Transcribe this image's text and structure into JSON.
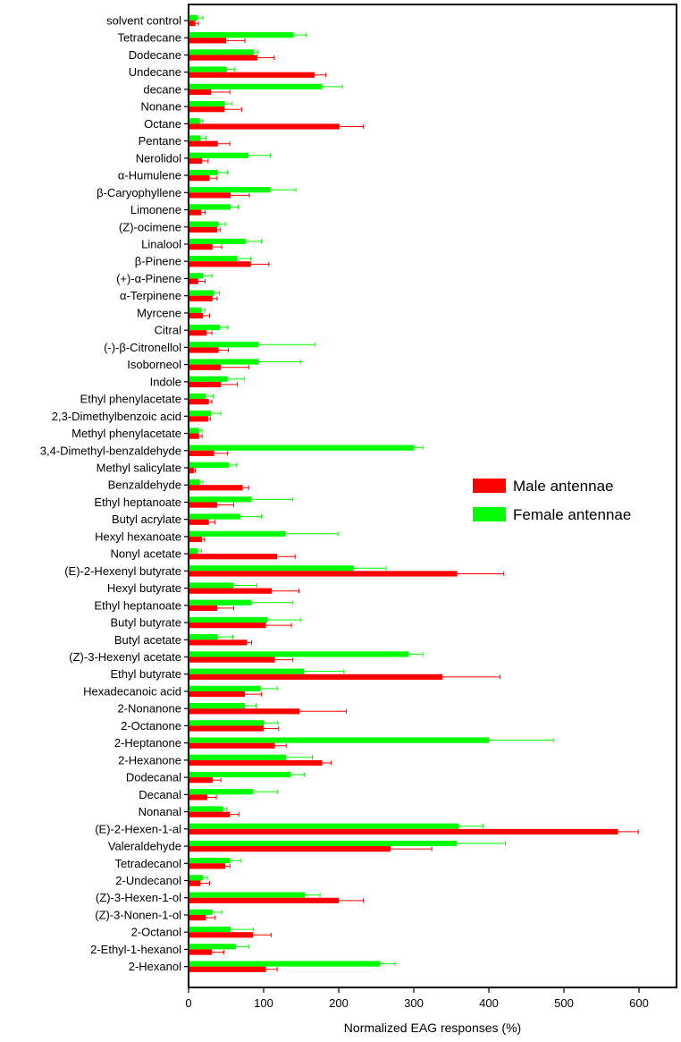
{
  "chart_data": {
    "type": "bar",
    "orientation": "horizontal",
    "xlabel": "Normalized EAG responses (%)",
    "xlim": [
      0,
      650
    ],
    "xticks": [
      0,
      100,
      200,
      300,
      400,
      500,
      600
    ],
    "grid": false,
    "legend_position": "right",
    "categories": [
      "solvent control",
      "Tetradecane",
      "Dodecane",
      "Undecane",
      "decane",
      "Nonane",
      "Octane",
      "Pentane",
      "Nerolidol",
      "α-Humulene",
      "β-Caryophyllene",
      "Limonene",
      "(Z)-ocimene",
      "Linalool",
      "β-Pinene",
      "(+)-α-Pinene",
      "α-Terpinene",
      "Myrcene",
      "Citral",
      "(-)-β-Citronellol",
      "Isoborneol",
      "Indole",
      "Ethyl phenylacetate",
      "2,3-Dimethylbenzoic acid",
      "Methyl phenylacetate",
      "3,4-Dimethyl-benzaldehyde",
      "Methyl salicylate",
      "Benzaldehyde",
      "Ethyl heptanoate",
      "Butyl acrylate",
      "Hexyl hexanoate",
      "Nonyl acetate",
      "(E)-2-Hexenyl butyrate",
      "Hexyl butyrate",
      "Ethyl heptanoate",
      "Butyl butyrate",
      "Butyl acetate",
      "(Z)-3-Hexenyl acetate",
      "Ethyl butyrate",
      "Hexadecanoic acid",
      "2-Nonanone",
      "2-Octanone",
      "2-Heptanone",
      "2-Hexanone",
      "Dodecanal",
      "Decanal",
      "Nonanal",
      "(E)-2-Hexen-1-al",
      "Valeraldehyde",
      "Tetradecanol",
      "2-Undecanol",
      "(Z)-3-Hexen-1-ol",
      "(Z)-3-Nonen-1-ol",
      "2-Octanol",
      "2-Ethyl-1-hexanol",
      "2-Hexanol"
    ],
    "series": [
      {
        "name": "Male antennae",
        "color": "#ff0000",
        "values": [
          9,
          50,
          92,
          168,
          30,
          48,
          201,
          39,
          18,
          28,
          56,
          17,
          38,
          32,
          83,
          13,
          32,
          19,
          24,
          40,
          43,
          43,
          27,
          26,
          14,
          34,
          7,
          72,
          38,
          27,
          18,
          118,
          358,
          111,
          38,
          103,
          78,
          115,
          338,
          75,
          148,
          100,
          115,
          178,
          32,
          25,
          55,
          572,
          269,
          49,
          16,
          200,
          23,
          86,
          31,
          103
        ],
        "errors": [
          4,
          25,
          22,
          15,
          25,
          23,
          32,
          16,
          8,
          10,
          25,
          5,
          4,
          12,
          24,
          9,
          6,
          9,
          7,
          13,
          37,
          22,
          4,
          3,
          4,
          18,
          2,
          8,
          22,
          8,
          3,
          24,
          62,
          36,
          22,
          34,
          6,
          24,
          77,
          22,
          62,
          20,
          15,
          12,
          11,
          12,
          12,
          27,
          55,
          6,
          12,
          33,
          12,
          24,
          16,
          15
        ]
      },
      {
        "name": "Female antennae",
        "color": "#00ff00",
        "values": [
          12,
          140,
          87,
          51,
          178,
          48,
          15,
          16,
          80,
          39,
          109,
          56,
          40,
          76,
          65,
          19,
          34,
          17,
          42,
          93,
          94,
          52,
          23,
          30,
          14,
          300,
          54,
          15,
          84,
          69,
          129,
          12,
          220,
          60,
          84,
          105,
          39,
          293,
          154,
          96,
          75,
          100,
          400,
          130,
          136,
          86,
          46,
          360,
          357,
          55,
          19,
          155,
          32,
          56,
          63,
          255
        ],
        "errors": [
          7,
          17,
          5,
          10,
          27,
          10,
          4,
          7,
          29,
          13,
          34,
          10,
          9,
          21,
          18,
          12,
          7,
          5,
          10,
          75,
          55,
          22,
          10,
          13,
          4,
          12,
          10,
          4,
          55,
          28,
          70,
          5,
          43,
          31,
          55,
          44,
          20,
          19,
          53,
          22,
          15,
          19,
          86,
          35,
          18,
          32,
          5,
          32,
          65,
          15,
          6,
          20,
          12,
          30,
          17,
          20
        ]
      }
    ]
  }
}
